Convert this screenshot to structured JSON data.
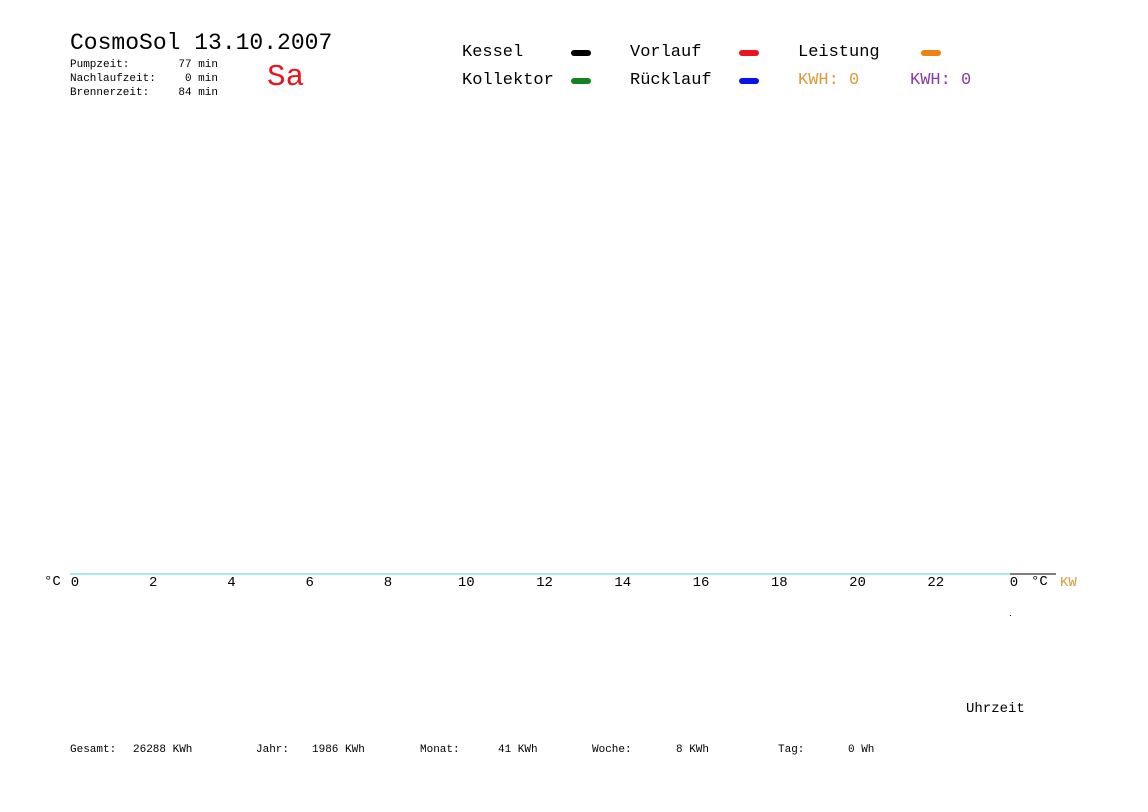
{
  "header": {
    "title": "CosmoSol 13.10.2007",
    "day": "Sa",
    "stats": [
      {
        "label": "Pumpzeit:",
        "value": "77 min"
      },
      {
        "label": "Nachlaufzeit:",
        "value": "0 min"
      },
      {
        "label": "Brennerzeit:",
        "value": "84 min"
      }
    ]
  },
  "legend": {
    "kessel": "Kessel",
    "kollektor": "Kollektor",
    "vorlauf": "Vorlauf",
    "ruecklauf": "Rücklauf",
    "leistung": "Leistung",
    "kwh_orange": "KWH: 0",
    "kwh_purple": "KWH: 0"
  },
  "colors": {
    "kessel": "#000000",
    "kollektor": "#14821e",
    "vorlauf": "#e8141e",
    "ruecklauf": "#0a14e6",
    "leistung": "#f08214",
    "kwh_orange": "#d99a3a",
    "kwh_purple": "#8a3aa0",
    "axis": "#55d0d8"
  },
  "chart_data": {
    "type": "line",
    "series": [],
    "x_ticks": [
      "0",
      "2",
      "4",
      "6",
      "8",
      "10",
      "12",
      "14",
      "16",
      "18",
      "20",
      "22",
      "0"
    ],
    "left_unit": "°C",
    "right_unit": "°C",
    "right_unit2": "KW",
    "xlabel": "Uhrzeit",
    "xlim": [
      0,
      24
    ]
  },
  "footer": {
    "gesamt_label": "Gesamt:",
    "gesamt_value": "26288 KWh",
    "jahr_label": "Jahr:",
    "jahr_value": "1986 KWh",
    "monat_label": "Monat:",
    "monat_value": "41 KWh",
    "woche_label": "Woche:",
    "woche_value": "8 KWh",
    "tag_label": "Tag:",
    "tag_value": "0 Wh"
  }
}
